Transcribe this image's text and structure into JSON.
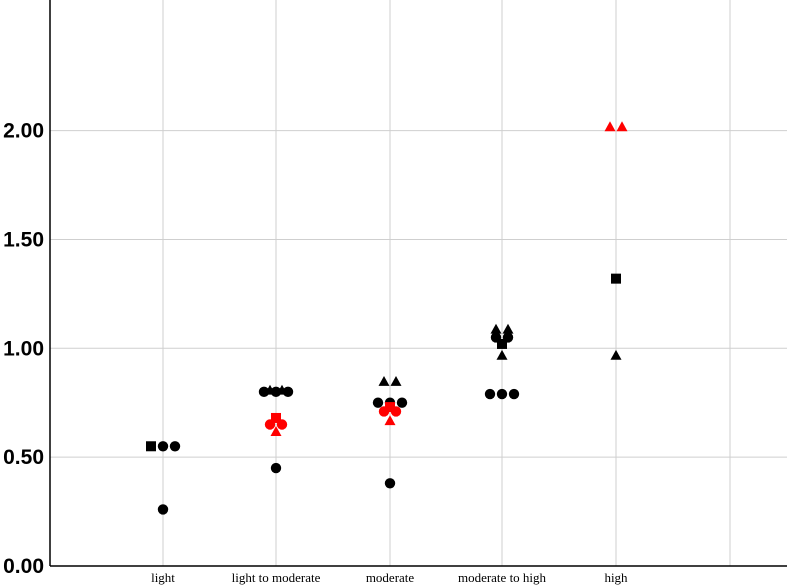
{
  "chart_data": {
    "type": "scatter",
    "title": "",
    "xlabel": "",
    "ylabel": "",
    "ylim": [
      0,
      2.6
    ],
    "y_ticks": [
      "0.00",
      "0.50",
      "1.00",
      "1.50",
      "2.00"
    ],
    "y_tick_values": [
      0,
      0.5,
      1.0,
      1.5,
      2.0
    ],
    "grid": true,
    "categories": [
      "light",
      "light to moderate",
      "moderate",
      "moderate to high",
      "high"
    ],
    "colors": {
      "black": "#000000",
      "red": "#ff0000"
    },
    "points": [
      {
        "category": "light",
        "y": 0.55,
        "marker": "square",
        "color": "black"
      },
      {
        "category": "light",
        "y": 0.55,
        "marker": "circle",
        "color": "black"
      },
      {
        "category": "light",
        "y": 0.55,
        "marker": "circle",
        "color": "black"
      },
      {
        "category": "light",
        "y": 0.26,
        "marker": "circle",
        "color": "black"
      },
      {
        "category": "light to moderate",
        "y": 0.81,
        "marker": "triangle",
        "color": "black"
      },
      {
        "category": "light to moderate",
        "y": 0.81,
        "marker": "triangle",
        "color": "black"
      },
      {
        "category": "light to moderate",
        "y": 0.8,
        "marker": "circle",
        "color": "black"
      },
      {
        "category": "light to moderate",
        "y": 0.8,
        "marker": "circle",
        "color": "black"
      },
      {
        "category": "light to moderate",
        "y": 0.8,
        "marker": "circle",
        "color": "black"
      },
      {
        "category": "light to moderate",
        "y": 0.68,
        "marker": "square",
        "color": "red"
      },
      {
        "category": "light to moderate",
        "y": 0.62,
        "marker": "triangle",
        "color": "red"
      },
      {
        "category": "light to moderate",
        "y": 0.65,
        "marker": "circle",
        "color": "red"
      },
      {
        "category": "light to moderate",
        "y": 0.65,
        "marker": "circle",
        "color": "red"
      },
      {
        "category": "light to moderate",
        "y": 0.45,
        "marker": "circle",
        "color": "black"
      },
      {
        "category": "moderate",
        "y": 0.85,
        "marker": "triangle",
        "color": "black"
      },
      {
        "category": "moderate",
        "y": 0.85,
        "marker": "triangle",
        "color": "black"
      },
      {
        "category": "moderate",
        "y": 0.75,
        "marker": "circle",
        "color": "black"
      },
      {
        "category": "moderate",
        "y": 0.75,
        "marker": "circle",
        "color": "black"
      },
      {
        "category": "moderate",
        "y": 0.75,
        "marker": "circle",
        "color": "black"
      },
      {
        "category": "moderate",
        "y": 0.73,
        "marker": "square",
        "color": "red"
      },
      {
        "category": "moderate",
        "y": 0.67,
        "marker": "triangle",
        "color": "red"
      },
      {
        "category": "moderate",
        "y": 0.71,
        "marker": "circle",
        "color": "red"
      },
      {
        "category": "moderate",
        "y": 0.71,
        "marker": "circle",
        "color": "red"
      },
      {
        "category": "moderate",
        "y": 0.38,
        "marker": "circle",
        "color": "black"
      },
      {
        "category": "moderate to high",
        "y": 1.09,
        "marker": "triangle",
        "color": "black"
      },
      {
        "category": "moderate to high",
        "y": 1.09,
        "marker": "triangle",
        "color": "black"
      },
      {
        "category": "moderate to high",
        "y": 1.05,
        "marker": "circle",
        "color": "black"
      },
      {
        "category": "moderate to high",
        "y": 1.05,
        "marker": "circle",
        "color": "black"
      },
      {
        "category": "moderate to high",
        "y": 1.02,
        "marker": "square",
        "color": "black"
      },
      {
        "category": "moderate to high",
        "y": 0.97,
        "marker": "triangle",
        "color": "black"
      },
      {
        "category": "moderate to high",
        "y": 0.79,
        "marker": "circle",
        "color": "black"
      },
      {
        "category": "moderate to high",
        "y": 0.79,
        "marker": "circle",
        "color": "black"
      },
      {
        "category": "moderate to high",
        "y": 0.79,
        "marker": "circle",
        "color": "black"
      },
      {
        "category": "high",
        "y": 2.02,
        "marker": "triangle",
        "color": "red"
      },
      {
        "category": "high",
        "y": 2.02,
        "marker": "triangle",
        "color": "red"
      },
      {
        "category": "high",
        "y": 1.32,
        "marker": "square",
        "color": "black"
      },
      {
        "category": "high",
        "y": 0.97,
        "marker": "triangle",
        "color": "black"
      }
    ]
  }
}
